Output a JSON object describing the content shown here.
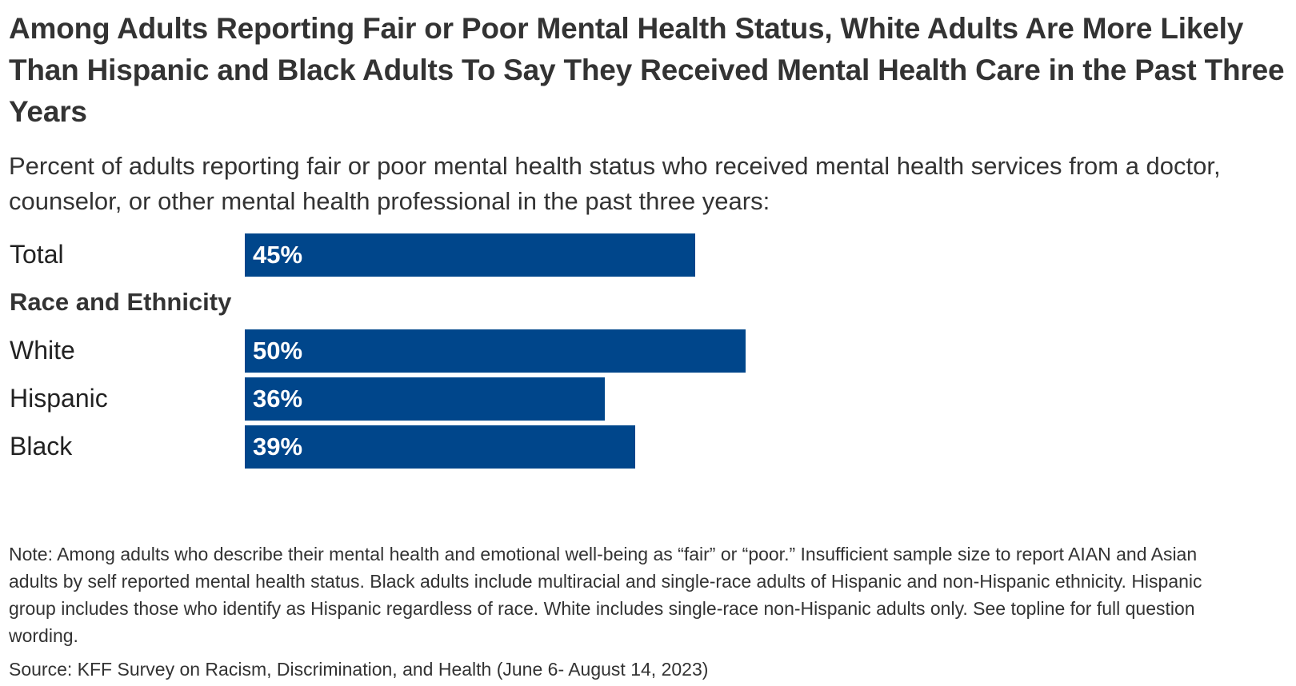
{
  "title": "Among Adults Reporting Fair or Poor Mental Health Status, White Adults Are More Likely Than Hispanic and Black Adults To Say They Received Mental Health Care in the Past Three Years",
  "subtitle": "Percent of adults reporting fair or poor mental health status who received mental health services from a doctor, counselor, or other mental health professional in the past three years:",
  "note": "Note: Among adults who describe their mental health and emotional well-being as “fair” or “poor.” Insufficient sample size to report AIAN and Asian adults by self reported mental health status. Black adults include multiracial and single-race adults of Hispanic and non-Hispanic ethnicity. Hispanic group includes those who identify as Hispanic regardless of race. White includes single-race non-Hispanic adults only. See topline for full question wording.",
  "source": "Source: KFF Survey on Racism, Discrimination, and Health (June 6- August 14, 2023)",
  "colors": {
    "bar": "#00468b",
    "bar_label": "#ffffff"
  },
  "chart_data": {
    "type": "bar",
    "orientation": "horizontal",
    "categories": [
      "Total",
      "White",
      "Hispanic",
      "Black"
    ],
    "values": [
      45,
      50,
      36,
      39
    ],
    "value_labels": [
      "45%",
      "50%",
      "36%",
      "39%"
    ],
    "group_header": "Race and Ethnicity",
    "xlim": [
      0,
      100
    ],
    "grid": false,
    "legend": "none"
  }
}
